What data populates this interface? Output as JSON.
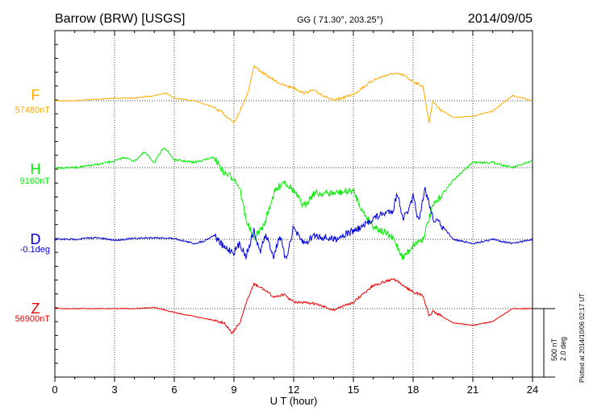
{
  "header": {
    "station": "Barrow (BRW)  [USGS]",
    "coords": "GG ( 71.30°, 203.25°)",
    "date": "2014/09/05"
  },
  "side": {
    "plotted": "Plotted at 2014/10/06 02:17 UT",
    "scale_nt": "500 nT",
    "scale_deg": "2.0 deg"
  },
  "chart_data": {
    "type": "line",
    "xlabel": "U T (hour)",
    "xlim": [
      0,
      24
    ],
    "xticks": [
      0,
      3,
      6,
      9,
      12,
      15,
      18,
      21,
      24
    ],
    "xtick_labels": [
      "0",
      "3",
      "6",
      "9",
      "12",
      "15",
      "18",
      "21",
      "24"
    ],
    "grid": true,
    "series": [
      {
        "name": "F",
        "base_label": "57480nT",
        "color": "#ffaa00",
        "x": [
          0,
          1,
          2,
          3,
          4,
          5,
          5.6,
          6,
          7,
          7.8,
          8.3,
          8.7,
          9,
          9.3,
          9.7,
          10,
          10.5,
          11,
          11.5,
          12,
          12.5,
          13,
          14,
          15,
          16,
          16.5,
          17,
          17.5,
          18,
          18.5,
          18.8,
          19,
          19.3,
          20,
          21,
          22,
          23,
          24
        ],
        "y": [
          0,
          0,
          10,
          20,
          20,
          40,
          60,
          20,
          0,
          -40,
          -80,
          -130,
          -170,
          -80,
          60,
          270,
          210,
          160,
          120,
          100,
          60,
          80,
          0,
          50,
          160,
          190,
          210,
          200,
          150,
          110,
          -170,
          0,
          -60,
          -130,
          -120,
          -80,
          40,
          0
        ]
      },
      {
        "name": "H",
        "base_label": "9160nT",
        "color": "#00ee00",
        "x": [
          0,
          1,
          2,
          3,
          3.5,
          4,
          4.5,
          5,
          5.5,
          6,
          7,
          8,
          8.5,
          9,
          9.3,
          9.6,
          10,
          10.5,
          11,
          11.5,
          12,
          12.5,
          13,
          14,
          15,
          15.5,
          16,
          16.5,
          17,
          17.5,
          18,
          18.5,
          19,
          19.5,
          20,
          21,
          22,
          23,
          24
        ],
        "y": [
          0,
          0,
          20,
          50,
          80,
          50,
          120,
          40,
          160,
          60,
          40,
          80,
          -40,
          -80,
          -160,
          -400,
          -550,
          -450,
          -200,
          -100,
          -180,
          -300,
          -200,
          -200,
          -180,
          -350,
          -450,
          -500,
          -550,
          -700,
          -600,
          -550,
          -300,
          -200,
          -100,
          40,
          40,
          0,
          50
        ]
      },
      {
        "name": "D",
        "base_label": "-0.1deg",
        "color": "#0000dd",
        "x": [
          0,
          1,
          2,
          3,
          4,
          5,
          6,
          7,
          7.5,
          8,
          8.5,
          9,
          9.3,
          9.6,
          10,
          10.3,
          10.6,
          11,
          11.3,
          11.6,
          12,
          12.3,
          12.6,
          13,
          14,
          15,
          15.5,
          16,
          16.5,
          17,
          17.2,
          17.5,
          17.8,
          18,
          18.3,
          18.6,
          19,
          19.5,
          20,
          21,
          22,
          23,
          24
        ],
        "y": [
          0,
          0,
          0.2,
          -0.1,
          0.1,
          0.2,
          0.1,
          -0.5,
          -0.2,
          0.5,
          -1.0,
          -1.5,
          -0.5,
          -2.0,
          1.0,
          -1.5,
          0.5,
          -2.0,
          0.5,
          -2.5,
          1.5,
          0,
          -0.5,
          0.5,
          0,
          1.0,
          1.5,
          2.5,
          3.0,
          3.5,
          5.5,
          2.5,
          3.5,
          5.0,
          2.0,
          6.0,
          2.5,
          1.5,
          0,
          -0.5,
          0,
          -0.5,
          0
        ]
      },
      {
        "name": "Z",
        "base_label": "56900nT",
        "color": "#ee0000",
        "x": [
          0,
          2,
          4,
          5,
          6,
          7,
          8,
          8.5,
          8.9,
          9.3,
          9.7,
          10,
          10.5,
          11,
          11.5,
          12,
          13,
          14,
          15,
          16,
          17,
          17.5,
          18,
          18.5,
          18.8,
          19,
          20,
          21,
          22,
          23,
          24
        ],
        "y": [
          0,
          0,
          0,
          10,
          -30,
          -60,
          -90,
          -110,
          -190,
          -110,
          80,
          190,
          150,
          90,
          110,
          50,
          40,
          -10,
          50,
          180,
          230,
          180,
          130,
          100,
          -60,
          -20,
          -110,
          -130,
          -100,
          0,
          0
        ]
      }
    ]
  }
}
